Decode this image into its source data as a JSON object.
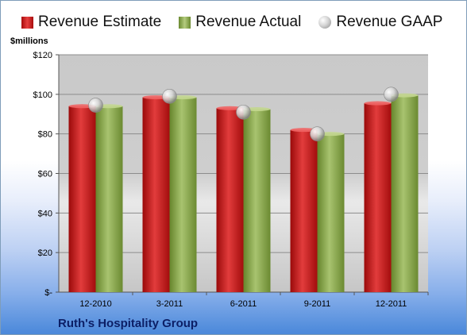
{
  "legend": {
    "estimate": "Revenue Estimate",
    "actual": "Revenue Actual",
    "gaap": "Revenue GAAP"
  },
  "unit_label": "$millions",
  "company": "Ruth's Hospitality Group",
  "colors": {
    "estimate": "#cc1f1f",
    "actual": "#8fae55",
    "gaap": "#c8c8c8",
    "company_text": "#0c1f66"
  },
  "chart_data": {
    "type": "bar",
    "categories": [
      "12-2010",
      "3-2011",
      "6-2011",
      "9-2011",
      "12-2011"
    ],
    "series": [
      {
        "name": "Revenue Estimate",
        "values": [
          94,
          98.5,
          93,
          82,
          95.5
        ]
      },
      {
        "name": "Revenue Actual",
        "values": [
          94,
          98.5,
          92.5,
          80,
          99.5
        ]
      },
      {
        "name": "Revenue GAAP",
        "values": [
          94.5,
          99,
          91,
          80,
          100
        ]
      }
    ],
    "ylim": [
      0,
      120
    ],
    "yticks": [
      0,
      20,
      40,
      60,
      80,
      100,
      120
    ],
    "ytick_labels": [
      "$-",
      "$20",
      "$40",
      "$60",
      "$80",
      "$100",
      "$120"
    ],
    "ylabel": "$millions",
    "grid": true,
    "legend_position": "top"
  }
}
